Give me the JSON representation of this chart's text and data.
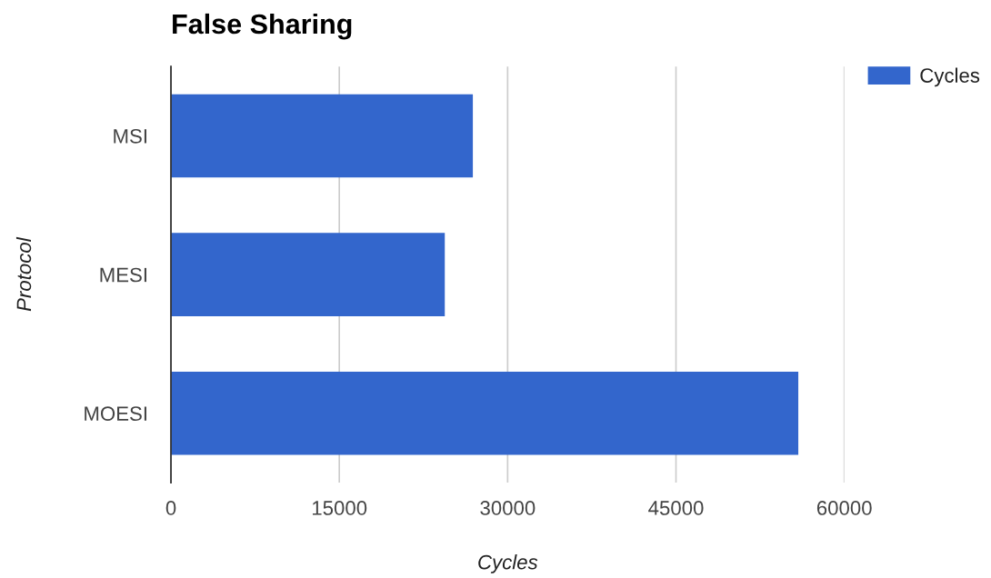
{
  "chart_data": {
    "type": "bar",
    "orientation": "horizontal",
    "title": "False Sharing",
    "xlabel": "Cycles",
    "ylabel": "Protocol",
    "categories": [
      "MSI",
      "MESI",
      "MOESI"
    ],
    "series": [
      {
        "name": "Cycles",
        "color": "#3366cc",
        "values": [
          26900,
          24400,
          55900
        ]
      }
    ],
    "xlim": [
      0,
      60000
    ],
    "xticks": [
      0,
      15000,
      30000,
      45000,
      60000
    ],
    "grid": "x",
    "legend": "top right"
  }
}
